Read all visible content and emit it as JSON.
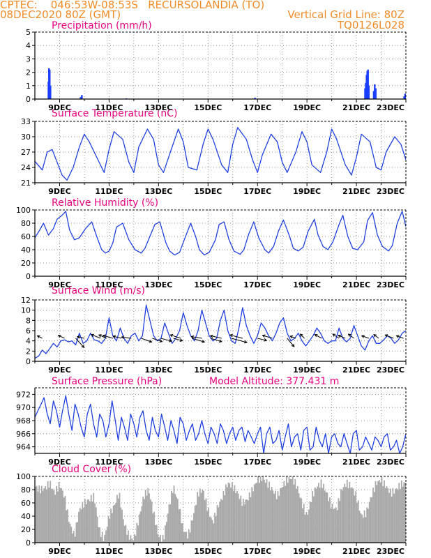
{
  "header": {
    "line1": "CPTEC:    046:53W-08:53S   RECURSOLANDIA (TO)",
    "line2_left": "08DEC2020 80Z (GMT)",
    "line2_right": "Vertical Grid Line: 80Z",
    "line3_right": "TQ0126L028"
  },
  "colors": {
    "header": "#f08c28",
    "title": "#e6007e",
    "series": "#1f3fe0",
    "bars": "#1b3fff",
    "cloud": "#a9a9a9",
    "grid": "#7a7a7a"
  },
  "x_axis": {
    "start": 0,
    "end": 15,
    "tick_labels": [
      "9DEC",
      "11DEC",
      "13DEC",
      "15DEC",
      "17DEC",
      "19DEC",
      "21DEC",
      "23DEC"
    ]
  },
  "panels": [
    {
      "title": "Precipitation (mm/h)",
      "ylabels": [
        "0",
        "1",
        "2",
        "3",
        "4",
        "5"
      ]
    },
    {
      "title": "Surface Temperature (nC)",
      "ylabels": [
        "21",
        "24",
        "27",
        "30",
        "33"
      ]
    },
    {
      "title": "Relative Humidity (%)",
      "ylabels": [
        "0",
        "20",
        "40",
        "60",
        "80",
        "100"
      ]
    },
    {
      "title": "Surface Wind (m/s)",
      "ylabels": [
        "0",
        "2",
        "4",
        "6",
        "8",
        "10",
        "12"
      ]
    },
    {
      "title": "Surface Pressure (hPa)",
      "extra": "Model Altitude: 377.431 m",
      "ylabels": [
        "964",
        "966",
        "968",
        "970",
        "972"
      ]
    },
    {
      "title": "Cloud Cover (%)",
      "ylabels": [
        "0",
        "20",
        "40",
        "60",
        "80",
        "100"
      ]
    }
  ],
  "chart_data": [
    {
      "type": "bar",
      "title": "Precipitation (mm/h)",
      "ylim": [
        0,
        5
      ],
      "x_unit": "days since 08DEC2020 80Z",
      "points": [
        [
          0.55,
          1.3
        ],
        [
          0.57,
          2.3
        ],
        [
          0.6,
          2.2
        ],
        [
          0.63,
          1.0
        ],
        [
          1.85,
          0.15
        ],
        [
          1.9,
          0.3
        ],
        [
          3.7,
          0.05
        ],
        [
          8.9,
          0.1
        ],
        [
          13.35,
          0.8
        ],
        [
          13.38,
          1.2
        ],
        [
          13.41,
          1.8
        ],
        [
          13.44,
          2.1
        ],
        [
          13.47,
          2.2
        ],
        [
          13.5,
          1.0
        ],
        [
          13.7,
          0.6
        ],
        [
          13.74,
          1.1
        ],
        [
          13.78,
          0.8
        ],
        [
          14.93,
          0.2
        ],
        [
          14.97,
          0.4
        ]
      ]
    },
    {
      "type": "line",
      "title": "Surface Temperature (nC)",
      "ylim": [
        21,
        33
      ],
      "x": [
        0.0,
        0.3,
        0.5,
        0.7,
        0.9,
        1.1,
        1.3,
        1.55,
        1.8,
        2.0,
        2.2,
        2.55,
        2.8,
        3.0,
        3.2,
        3.55,
        3.8,
        4.0,
        4.2,
        4.55,
        4.8,
        5.0,
        5.2,
        5.55,
        5.8,
        6.0,
        6.2,
        6.55,
        6.8,
        7.0,
        7.2,
        7.55,
        7.8,
        8.0,
        8.2,
        8.55,
        8.8,
        9.0,
        9.2,
        9.55,
        9.8,
        10.0,
        10.2,
        10.55,
        10.8,
        11.0,
        11.2,
        11.55,
        11.8,
        12.0,
        12.2,
        12.55,
        12.8,
        13.0,
        13.2,
        13.55,
        13.8,
        14.0,
        14.2,
        14.55,
        14.8,
        15.0
      ],
      "y": [
        25.2,
        23.5,
        27.0,
        27.5,
        25.0,
        22.5,
        21.5,
        24.0,
        28.0,
        30.5,
        29.0,
        25.5,
        23.0,
        27.5,
        31.0,
        29.5,
        25.0,
        23.0,
        28.0,
        31.5,
        29.5,
        24.5,
        23.0,
        28.0,
        31.5,
        29.0,
        24.0,
        23.5,
        28.5,
        31.5,
        29.5,
        24.5,
        23.0,
        28.5,
        31.8,
        29.5,
        25.5,
        23.0,
        26.5,
        30.5,
        29.0,
        25.0,
        23.0,
        27.0,
        31.0,
        29.0,
        24.5,
        23.0,
        27.0,
        31.5,
        29.5,
        24.5,
        22.5,
        26.0,
        30.5,
        29.0,
        24.0,
        23.5,
        27.0,
        30.0,
        28.5,
        25.5
      ]
    },
    {
      "type": "line",
      "title": "Relative Humidity (%)",
      "ylim": [
        0,
        100
      ],
      "x": [
        0.0,
        0.2,
        0.35,
        0.55,
        0.75,
        0.9,
        1.1,
        1.25,
        1.4,
        1.6,
        1.8,
        2.05,
        2.3,
        2.5,
        2.7,
        2.85,
        3.0,
        3.15,
        3.3,
        3.55,
        3.8,
        4.05,
        4.3,
        4.45,
        4.65,
        4.85,
        5.05,
        5.3,
        5.45,
        5.65,
        5.85,
        6.05,
        6.3,
        6.5,
        6.65,
        6.85,
        7.05,
        7.3,
        7.45,
        7.65,
        7.85,
        8.05,
        8.3,
        8.45,
        8.65,
        8.85,
        9.05,
        9.3,
        9.45,
        9.65,
        9.85,
        10.05,
        10.3,
        10.45,
        10.65,
        10.85,
        11.05,
        11.3,
        11.45,
        11.65,
        11.85,
        12.05,
        12.3,
        12.45,
        12.65,
        12.85,
        13.05,
        13.3,
        13.45,
        13.65,
        13.85,
        14.05,
        14.3,
        14.45,
        14.65,
        14.85,
        15.0
      ],
      "y": [
        58,
        70,
        80,
        62,
        72,
        86,
        92,
        98,
        70,
        55,
        58,
        72,
        82,
        60,
        40,
        35,
        38,
        50,
        74,
        80,
        55,
        40,
        35,
        42,
        60,
        78,
        82,
        50,
        38,
        32,
        36,
        56,
        80,
        60,
        40,
        32,
        36,
        55,
        78,
        82,
        55,
        38,
        33,
        40,
        64,
        82,
        58,
        40,
        35,
        45,
        68,
        85,
        60,
        42,
        38,
        44,
        68,
        86,
        62,
        45,
        40,
        52,
        78,
        92,
        60,
        42,
        40,
        52,
        84,
        96,
        62,
        45,
        38,
        46,
        80,
        98,
        75
      ]
    },
    {
      "type": "line",
      "title": "Surface Wind (m/s)",
      "ylim": [
        0,
        12
      ],
      "x": [
        0.0,
        0.15,
        0.3,
        0.45,
        0.6,
        0.75,
        0.9,
        1.05,
        1.2,
        1.35,
        1.5,
        1.65,
        1.8,
        1.95,
        2.1,
        2.25,
        2.4,
        2.55,
        2.7,
        2.85,
        3.0,
        3.15,
        3.3,
        3.45,
        3.6,
        3.75,
        3.9,
        4.05,
        4.2,
        4.35,
        4.5,
        4.65,
        4.8,
        4.95,
        5.1,
        5.25,
        5.4,
        5.55,
        5.7,
        5.85,
        6.0,
        6.15,
        6.3,
        6.45,
        6.6,
        6.75,
        6.9,
        7.05,
        7.2,
        7.35,
        7.5,
        7.65,
        7.8,
        7.95,
        8.1,
        8.25,
        8.4,
        8.55,
        8.7,
        8.85,
        9.0,
        9.15,
        9.3,
        9.45,
        9.6,
        9.75,
        9.9,
        10.05,
        10.2,
        10.35,
        10.5,
        10.65,
        10.8,
        10.95,
        11.1,
        11.25,
        11.4,
        11.55,
        11.7,
        11.85,
        12.0,
        12.15,
        12.3,
        12.45,
        12.6,
        12.75,
        12.9,
        13.05,
        13.2,
        13.35,
        13.5,
        13.65,
        13.8,
        13.95,
        14.1,
        14.25,
        14.4,
        14.55,
        14.7,
        14.85,
        15.0
      ],
      "y": [
        0.6,
        1.0,
        2.2,
        1.5,
        2.5,
        3.5,
        2.8,
        4.0,
        4.2,
        3.8,
        4.0,
        3.2,
        5.5,
        3.5,
        4.0,
        5.5,
        4.2,
        4.0,
        3.5,
        4.5,
        8.5,
        5.0,
        4.0,
        6.5,
        4.5,
        3.5,
        5.0,
        5.5,
        4.0,
        5.0,
        11.0,
        8.0,
        5.0,
        4.0,
        4.5,
        7.5,
        5.5,
        3.5,
        4.5,
        6.0,
        9.5,
        7.0,
        5.0,
        4.0,
        6.0,
        10.0,
        7.5,
        5.0,
        4.0,
        4.5,
        8.0,
        10.0,
        6.0,
        4.0,
        3.5,
        6.5,
        10.5,
        7.0,
        5.0,
        3.5,
        5.0,
        7.5,
        6.5,
        5.0,
        4.0,
        5.5,
        7.5,
        8.5,
        5.5,
        4.0,
        4.5,
        5.5,
        4.0,
        3.0,
        4.0,
        5.0,
        6.5,
        5.5,
        4.0,
        3.5,
        4.0,
        4.0,
        6.5,
        4.5,
        3.8,
        4.5,
        7.0,
        5.0,
        3.0,
        2.2,
        4.0,
        5.0,
        3.5,
        3.5,
        4.2,
        5.0,
        4.5,
        3.5,
        4.2,
        5.5,
        6.0
      ],
      "arrows": [
        [
          0.3,
          4.5,
          -0.7,
          -0.6
        ],
        [
          1.2,
          4.5,
          -0.9,
          -0.7
        ],
        [
          1.65,
          4.5,
          1.2,
          2.2
        ],
        [
          2.0,
          4.5,
          -1.0,
          -0.4
        ],
        [
          2.65,
          4.5,
          -1.3,
          -0.9
        ],
        [
          2.9,
          4.5,
          -1.1,
          -0.8
        ],
        [
          3.15,
          4.5,
          -1.4,
          -0.7
        ],
        [
          3.5,
          4.5,
          -1.2,
          -0.5
        ],
        [
          3.9,
          4.5,
          -1.4,
          -0.3
        ],
        [
          4.3,
          4.5,
          1.5,
          0.9
        ],
        [
          4.75,
          4.5,
          1.4,
          0.8
        ],
        [
          5.1,
          4.5,
          1.5,
          0.7
        ],
        [
          5.6,
          4.5,
          1.3,
          0.6
        ],
        [
          5.9,
          4.5,
          -1.5,
          -0.8
        ],
        [
          6.35,
          4.5,
          1.8,
          0.9
        ],
        [
          6.75,
          4.5,
          -1.5,
          -0.4
        ],
        [
          7.1,
          4.5,
          1.6,
          0.8
        ],
        [
          7.55,
          4.5,
          -1.6,
          -0.6
        ],
        [
          7.95,
          4.5,
          2.2,
          1.0
        ],
        [
          8.4,
          4.5,
          -1.8,
          -0.8
        ],
        [
          9.0,
          4.5,
          1.3,
          0.5
        ],
        [
          9.6,
          4.5,
          -1.4,
          -0.7
        ],
        [
          10.2,
          4.5,
          1.0,
          2.0
        ],
        [
          10.55,
          4.5,
          -0.8,
          -0.5
        ],
        [
          10.9,
          4.5,
          -0.6,
          -1.0
        ],
        [
          11.6,
          4.5,
          -1.0,
          -0.9
        ],
        [
          12.3,
          4.5,
          -0.9,
          -1.0
        ],
        [
          12.55,
          4.5,
          -1.0,
          -0.7
        ],
        [
          12.9,
          4.5,
          -0.8,
          -1.0
        ],
        [
          13.5,
          4.5,
          -1.0,
          -0.6
        ],
        [
          13.9,
          4.5,
          -0.7,
          -0.9
        ],
        [
          14.5,
          4.5,
          -1.2,
          -0.8
        ],
        [
          14.9,
          4.5,
          -1.0,
          -0.6
        ]
      ]
    },
    {
      "type": "line",
      "title": "Surface Pressure (hPa)",
      "ylim": [
        963,
        973
      ],
      "x": [
        0.0,
        0.12,
        0.25,
        0.37,
        0.5,
        0.62,
        0.75,
        0.87,
        1.0,
        1.12,
        1.25,
        1.37,
        1.5,
        1.62,
        1.75,
        1.87,
        2.0,
        2.12,
        2.25,
        2.37,
        2.5,
        2.62,
        2.75,
        2.87,
        3.0,
        3.12,
        3.25,
        3.37,
        3.5,
        3.62,
        3.75,
        3.87,
        4.0,
        4.12,
        4.25,
        4.37,
        4.5,
        4.62,
        4.75,
        4.87,
        5.0,
        5.12,
        5.25,
        5.37,
        5.5,
        5.62,
        5.75,
        5.87,
        6.0,
        6.12,
        6.25,
        6.37,
        6.5,
        6.62,
        6.75,
        6.87,
        7.0,
        7.12,
        7.25,
        7.37,
        7.5,
        7.62,
        7.75,
        7.87,
        8.0,
        8.12,
        8.25,
        8.37,
        8.5,
        8.62,
        8.75,
        8.87,
        9.0,
        9.12,
        9.25,
        9.37,
        9.5,
        9.62,
        9.75,
        9.87,
        10.0,
        10.12,
        10.25,
        10.37,
        10.5,
        10.62,
        10.75,
        10.87,
        11.0,
        11.12,
        11.25,
        11.37,
        11.5,
        11.62,
        11.75,
        11.87,
        12.0,
        12.12,
        12.25,
        12.37,
        12.5,
        12.62,
        12.75,
        12.87,
        13.0,
        13.12,
        13.25,
        13.37,
        13.5,
        13.62,
        13.75,
        13.87,
        14.0,
        14.12,
        14.25,
        14.37,
        14.5,
        14.62,
        14.75,
        14.87,
        15.0
      ],
      "y": [
        968.5,
        969.5,
        970.5,
        971.5,
        969.0,
        967.5,
        971.0,
        969.5,
        967.0,
        969.5,
        971.8,
        969.0,
        966.5,
        970.5,
        969.0,
        967.0,
        965.5,
        969.0,
        970.5,
        967.5,
        965.5,
        969.0,
        968.0,
        965.5,
        967.5,
        971.0,
        968.0,
        965.0,
        968.5,
        967.0,
        965.0,
        969.0,
        967.5,
        965.5,
        968.5,
        969.5,
        966.5,
        965.0,
        968.5,
        966.5,
        965.5,
        969.0,
        967.0,
        965.0,
        968.0,
        966.5,
        964.5,
        968.5,
        967.5,
        965.0,
        966.5,
        967.5,
        965.0,
        966.0,
        968.0,
        966.0,
        964.5,
        967.0,
        966.0,
        964.5,
        967.5,
        966.5,
        964.5,
        966.0,
        967.0,
        965.0,
        966.5,
        967.0,
        964.8,
        966.5,
        965.5,
        964.5,
        966.0,
        967.0,
        963.0,
        966.0,
        967.0,
        964.5,
        965.0,
        966.5,
        963.5,
        965.5,
        967.5,
        964.0,
        965.5,
        966.0,
        963.5,
        966.5,
        967.0,
        963.5,
        964.0,
        967.0,
        965.0,
        964.0,
        966.0,
        963.0,
        965.5,
        966.0,
        964.5,
        964.0,
        966.0,
        964.5,
        963.0,
        966.0,
        966.5,
        963.5,
        964.0,
        965.5,
        964.5,
        963.5,
        965.5,
        965.0,
        964.0,
        965.5,
        966.0,
        963.5,
        964.0,
        965.0,
        963.0,
        964.0,
        966.0
      ]
    },
    {
      "type": "area",
      "title": "Cloud Cover (%)",
      "ylim": [
        0,
        100
      ],
      "x": [
        0.0,
        0.2,
        0.4,
        0.6,
        0.8,
        1.0,
        1.2,
        1.4,
        1.6,
        1.8,
        2.0,
        2.2,
        2.4,
        2.6,
        2.8,
        3.0,
        3.2,
        3.4,
        3.6,
        3.8,
        4.0,
        4.2,
        4.4,
        4.6,
        4.8,
        5.0,
        5.2,
        5.4,
        5.6,
        5.8,
        6.0,
        6.2,
        6.4,
        6.6,
        6.8,
        7.0,
        7.2,
        7.4,
        7.6,
        7.8,
        8.0,
        8.2,
        8.4,
        8.6,
        8.8,
        9.0,
        9.2,
        9.4,
        9.6,
        9.8,
        10.0,
        10.2,
        10.4,
        10.6,
        10.8,
        11.0,
        11.2,
        11.4,
        11.6,
        11.8,
        12.0,
        12.2,
        12.4,
        12.6,
        12.8,
        13.0,
        13.2,
        13.4,
        13.6,
        13.8,
        14.0,
        14.2,
        14.4,
        14.6,
        14.8,
        15.0
      ],
      "y": [
        85,
        80,
        82,
        90,
        75,
        88,
        70,
        30,
        10,
        50,
        60,
        65,
        70,
        20,
        5,
        40,
        55,
        75,
        30,
        10,
        5,
        35,
        70,
        80,
        45,
        10,
        5,
        50,
        85,
        60,
        20,
        10,
        40,
        75,
        80,
        50,
        30,
        55,
        70,
        90,
        85,
        75,
        60,
        65,
        80,
        95,
        98,
        90,
        80,
        70,
        85,
        95,
        98,
        85,
        60,
        40,
        70,
        85,
        90,
        75,
        55,
        50,
        80,
        90,
        85,
        70,
        40,
        45,
        70,
        90,
        95,
        85,
        75,
        80,
        88,
        90
      ]
    }
  ]
}
